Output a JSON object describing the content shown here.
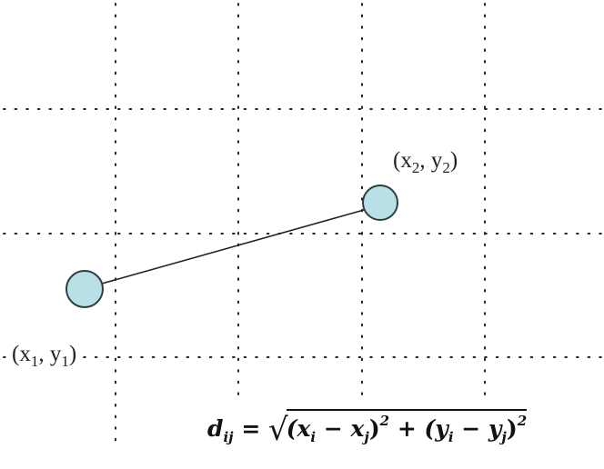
{
  "points": [
    {
      "label_var_x": "x",
      "label_sub": "1",
      "label_var_y": "y",
      "fill": "#b8e0e6"
    },
    {
      "label_var_x": "x",
      "label_sub": "2",
      "label_var_y": "y",
      "fill": "#b8e0e6"
    }
  ],
  "formula": {
    "lhs": "d",
    "lhs_sub": "ij",
    "equals": "=",
    "sqrt": "√",
    "term1_open": "(x",
    "term1_i": "i",
    "minus1": " − x",
    "term1_j": "j",
    "close1": ")",
    "sq1": "2",
    "plus": " + ",
    "term2_open": "(y",
    "term2_i": "i",
    "minus2": " − y",
    "term2_j": "j",
    "close2": ")",
    "sq2": "2"
  },
  "colors": {
    "node_fill": "#b8e0e6",
    "node_stroke": "#2f3f3f",
    "grid": "#222222"
  }
}
